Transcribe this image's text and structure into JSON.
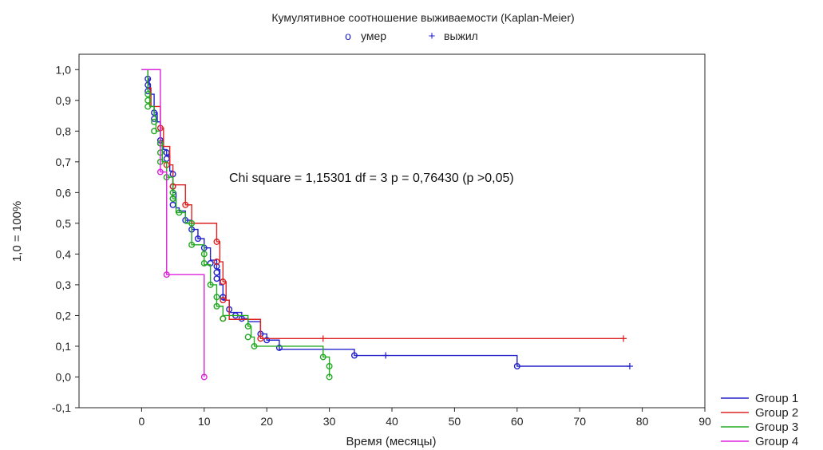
{
  "chart_data": {
    "type": "line",
    "title": "Кумулятивное соотношение выживаемости (Kaplan-Meier)",
    "marker_legend": [
      {
        "symbol": "o",
        "label": "умер"
      },
      {
        "symbol": "+",
        "label": "выжил"
      }
    ],
    "xlabel": "Время (месяцы)",
    "ylabel": "1,0 = 100%",
    "xlim": [
      -10,
      90
    ],
    "ylim": [
      -0.1,
      1.05
    ],
    "xticks": [
      0,
      10,
      20,
      30,
      40,
      50,
      60,
      70,
      80,
      90
    ],
    "xtick_labels": [
      "0",
      "10",
      "20",
      "30",
      "40",
      "50",
      "60",
      "70",
      "80",
      "90"
    ],
    "yticks": [
      1.0,
      0.9,
      0.8,
      0.7,
      0.6,
      0.5,
      0.4,
      0.3,
      0.2,
      0.1,
      0.0,
      -0.1
    ],
    "ytick_labels": [
      "1,0",
      "0,9",
      "0,8",
      "0,7",
      "0,6",
      "0,5",
      "0,4",
      "0,3",
      "0,2",
      "0,1",
      "0,0",
      "-0,1"
    ],
    "grid": false,
    "legend_position": "bottom-right",
    "annotation": "Chi square = 1,15301 df = 3 p = 0,76430 (p >0,05)",
    "series": [
      {
        "name": "Group  1",
        "color": "#2222cc",
        "steps": [
          [
            0,
            1.0
          ],
          [
            1,
            0.97
          ],
          [
            1.2,
            0.95
          ],
          [
            1.4,
            0.92
          ],
          [
            2,
            0.86
          ],
          [
            2.5,
            0.83
          ],
          [
            3,
            0.77
          ],
          [
            3.5,
            0.74
          ],
          [
            4,
            0.72
          ],
          [
            4.5,
            0.67
          ],
          [
            5,
            0.6
          ],
          [
            5.5,
            0.55
          ],
          [
            6,
            0.54
          ],
          [
            7,
            0.51
          ],
          [
            8,
            0.48
          ],
          [
            9,
            0.45
          ],
          [
            10,
            0.42
          ],
          [
            11,
            0.38
          ],
          [
            12,
            0.35
          ],
          [
            12.5,
            0.3
          ],
          [
            13,
            0.25
          ],
          [
            14,
            0.21
          ],
          [
            16,
            0.19
          ],
          [
            17,
            0.18
          ],
          [
            19,
            0.14
          ],
          [
            20,
            0.12
          ],
          [
            22,
            0.09
          ],
          [
            34,
            0.07
          ],
          [
            60,
            0.035
          ],
          [
            78,
            0.035
          ]
        ],
        "died": [
          [
            1,
            0.97
          ],
          [
            1,
            0.95
          ],
          [
            1,
            0.93
          ],
          [
            2,
            0.86
          ],
          [
            2,
            0.84
          ],
          [
            3,
            0.77
          ],
          [
            3,
            0.76
          ],
          [
            4,
            0.73
          ],
          [
            4,
            0.71
          ],
          [
            5,
            0.66
          ],
          [
            5,
            0.62
          ],
          [
            5,
            0.58
          ],
          [
            5,
            0.56
          ],
          [
            7,
            0.51
          ],
          [
            8,
            0.48
          ],
          [
            9,
            0.45
          ],
          [
            10,
            0.42
          ],
          [
            11,
            0.37
          ],
          [
            12,
            0.36
          ],
          [
            12,
            0.34
          ],
          [
            12,
            0.32
          ],
          [
            13,
            0.26
          ],
          [
            14,
            0.22
          ],
          [
            15,
            0.2
          ],
          [
            16,
            0.19
          ],
          [
            19,
            0.14
          ],
          [
            20,
            0.12
          ],
          [
            22,
            0.095
          ],
          [
            34,
            0.07
          ],
          [
            60,
            0.035
          ]
        ],
        "censored": [
          [
            39,
            0.07
          ],
          [
            78,
            0.035
          ]
        ]
      },
      {
        "name": "Group  2",
        "color": "#dd2222",
        "steps": [
          [
            0,
            1.0
          ],
          [
            1,
            0.94
          ],
          [
            1.5,
            0.88
          ],
          [
            3,
            0.81
          ],
          [
            3.5,
            0.75
          ],
          [
            4.5,
            0.69
          ],
          [
            5,
            0.625
          ],
          [
            7,
            0.56
          ],
          [
            8,
            0.5
          ],
          [
            12,
            0.44
          ],
          [
            12.5,
            0.375
          ],
          [
            13,
            0.31
          ],
          [
            13.5,
            0.25
          ],
          [
            14,
            0.1875
          ],
          [
            19,
            0.125
          ],
          [
            77,
            0.125
          ]
        ],
        "died": [
          [
            3,
            0.81
          ],
          [
            3,
            0.76
          ],
          [
            4,
            0.69
          ],
          [
            5,
            0.62
          ],
          [
            7,
            0.56
          ],
          [
            12,
            0.44
          ],
          [
            12,
            0.375
          ],
          [
            13,
            0.31
          ],
          [
            13,
            0.25
          ],
          [
            13,
            0.19
          ],
          [
            19,
            0.125
          ]
        ],
        "censored": [
          [
            29,
            0.125
          ],
          [
            77,
            0.125
          ]
        ]
      },
      {
        "name": "Group  3",
        "color": "#22aa22",
        "steps": [
          [
            0,
            1.0
          ],
          [
            1,
            0.93
          ],
          [
            1.3,
            0.88
          ],
          [
            2,
            0.85
          ],
          [
            2.3,
            0.8
          ],
          [
            3,
            0.76
          ],
          [
            3.3,
            0.7
          ],
          [
            4,
            0.65
          ],
          [
            5,
            0.58
          ],
          [
            5.5,
            0.535
          ],
          [
            7,
            0.5
          ],
          [
            8,
            0.43
          ],
          [
            10,
            0.365
          ],
          [
            11,
            0.3
          ],
          [
            12,
            0.23
          ],
          [
            13,
            0.2
          ],
          [
            17,
            0.165
          ],
          [
            17.5,
            0.13
          ],
          [
            18,
            0.1
          ],
          [
            29,
            0.065
          ],
          [
            30,
            0.0
          ]
        ],
        "died": [
          [
            1,
            0.92
          ],
          [
            1,
            0.9
          ],
          [
            1,
            0.88
          ],
          [
            2,
            0.83
          ],
          [
            2,
            0.8
          ],
          [
            3,
            0.76
          ],
          [
            3,
            0.73
          ],
          [
            3,
            0.7
          ],
          [
            4,
            0.65
          ],
          [
            5,
            0.6
          ],
          [
            5,
            0.58
          ],
          [
            6,
            0.535
          ],
          [
            8,
            0.5
          ],
          [
            8,
            0.43
          ],
          [
            10,
            0.4
          ],
          [
            10,
            0.37
          ],
          [
            11,
            0.3
          ],
          [
            12,
            0.26
          ],
          [
            12,
            0.23
          ],
          [
            13,
            0.19
          ],
          [
            17,
            0.165
          ],
          [
            17,
            0.13
          ],
          [
            18,
            0.1
          ],
          [
            29,
            0.065
          ],
          [
            30,
            0.035
          ],
          [
            30,
            0.0
          ]
        ],
        "censored": []
      },
      {
        "name": "Group  4",
        "color": "#dd22dd",
        "steps": [
          [
            0,
            1.0
          ],
          [
            3,
            0.667
          ],
          [
            4,
            0.333
          ],
          [
            10,
            0.0
          ]
        ],
        "died": [
          [
            3,
            0.667
          ],
          [
            4,
            0.333
          ],
          [
            10,
            0.0
          ]
        ],
        "censored": []
      }
    ]
  },
  "colors": {
    "axis": "#222222",
    "background": "#ffffff"
  }
}
